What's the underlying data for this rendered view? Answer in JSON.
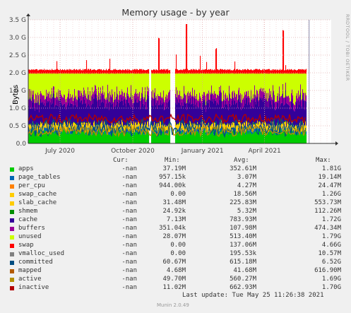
{
  "title": "Memory usage - by year",
  "y_label": "Bytes",
  "side_text": "RRDTOOL / TOBI OETIKER",
  "legend_headers": {
    "cur": "Cur:",
    "min": "Min:",
    "avg": "Avg:",
    "max": "Max:"
  },
  "legend": [
    {
      "name": "apps",
      "color": "#00cc00",
      "cur": "-nan",
      "min": "37.19M",
      "avg": "352.61M",
      "max": "1.81G"
    },
    {
      "name": "page_tables",
      "color": "#0066b3",
      "cur": "-nan",
      "min": "957.15k",
      "avg": "3.07M",
      "max": "19.14M"
    },
    {
      "name": "per_cpu",
      "color": "#ff8000",
      "cur": "-nan",
      "min": "944.00k",
      "avg": "4.27M",
      "max": "24.47M"
    },
    {
      "name": "swap_cache",
      "color": "#ffcc00",
      "cur": "-nan",
      "min": "0.00",
      "avg": "18.56M",
      "max": "1.26G"
    },
    {
      "name": "slab_cache",
      "color": "#ffcc00",
      "cur": "-nan",
      "min": "31.48M",
      "avg": "225.83M",
      "max": "553.73M"
    },
    {
      "name": "shmem",
      "color": "#008f00",
      "cur": "-nan",
      "min": "24.92k",
      "avg": "5.32M",
      "max": "112.26M"
    },
    {
      "name": "cache",
      "color": "#330099",
      "cur": "-nan",
      "min": "7.13M",
      "avg": "783.93M",
      "max": "1.72G"
    },
    {
      "name": "buffers",
      "color": "#990099",
      "cur": "-nan",
      "min": "351.04k",
      "avg": "107.98M",
      "max": "474.34M"
    },
    {
      "name": "unused",
      "color": "#ccff00",
      "cur": "-nan",
      "min": "28.07M",
      "avg": "513.40M",
      "max": "1.79G"
    },
    {
      "name": "swap",
      "color": "#ff0000",
      "cur": "-nan",
      "min": "0.00",
      "avg": "137.06M",
      "max": "4.66G"
    },
    {
      "name": "vmalloc_used",
      "color": "#808080",
      "cur": "-nan",
      "min": "0.00",
      "avg": "195.53k",
      "max": "10.57M"
    },
    {
      "name": "committed",
      "color": "#004d80",
      "cur": "-nan",
      "min": "60.67M",
      "avg": "615.18M",
      "max": "6.52G"
    },
    {
      "name": "mapped",
      "color": "#b35a00",
      "cur": "-nan",
      "min": "4.68M",
      "avg": "41.68M",
      "max": "616.90M"
    },
    {
      "name": "active",
      "color": "#b38f00",
      "cur": "-nan",
      "min": "49.70M",
      "avg": "560.27M",
      "max": "1.69G"
    },
    {
      "name": "inactive",
      "color": "#b30000",
      "cur": "-nan",
      "min": "11.02M",
      "avg": "662.93M",
      "max": "1.70G"
    }
  ],
  "last_update": "Last update: Tue May 25 11:26:38 2021",
  "munin_version": "Munin 2.0.49",
  "chart_data": {
    "type": "area",
    "title": "Memory usage - by year",
    "ylabel": "Bytes",
    "y_ticks": [
      "0.0",
      "0.5 G",
      "1.0 G",
      "1.5 G",
      "2.0 G",
      "2.5 G",
      "3.0 G",
      "3.5 G"
    ],
    "ylim": [
      0,
      3.5
    ],
    "y_unit": "G",
    "x_ticks": [
      "July 2020",
      "October 2020",
      "January 2021",
      "April 2021"
    ],
    "x_tick_pos": [
      0.105,
      0.345,
      0.575,
      0.78
    ],
    "grid": true,
    "stacked_typical_G": [
      {
        "series": "apps",
        "value": 0.35
      },
      {
        "series": "slab_cache",
        "value": 0.23
      },
      {
        "series": "cache",
        "value": 0.78
      },
      {
        "series": "buffers",
        "value": 0.11
      },
      {
        "series": "unused",
        "value": 0.51
      },
      {
        "series": "swap",
        "value": 0.14
      }
    ],
    "total_level_G": 2.0,
    "gaps_x": [
      0.4,
      0.47,
      0.48,
      0.92
    ],
    "data_end_x": 0.92,
    "spikes": [
      {
        "x": 0.43,
        "value": 2.9
      },
      {
        "x": 0.52,
        "value": 3.3
      },
      {
        "x": 0.84,
        "value": 3.1
      },
      {
        "x": 0.62,
        "value": 2.6
      }
    ]
  }
}
